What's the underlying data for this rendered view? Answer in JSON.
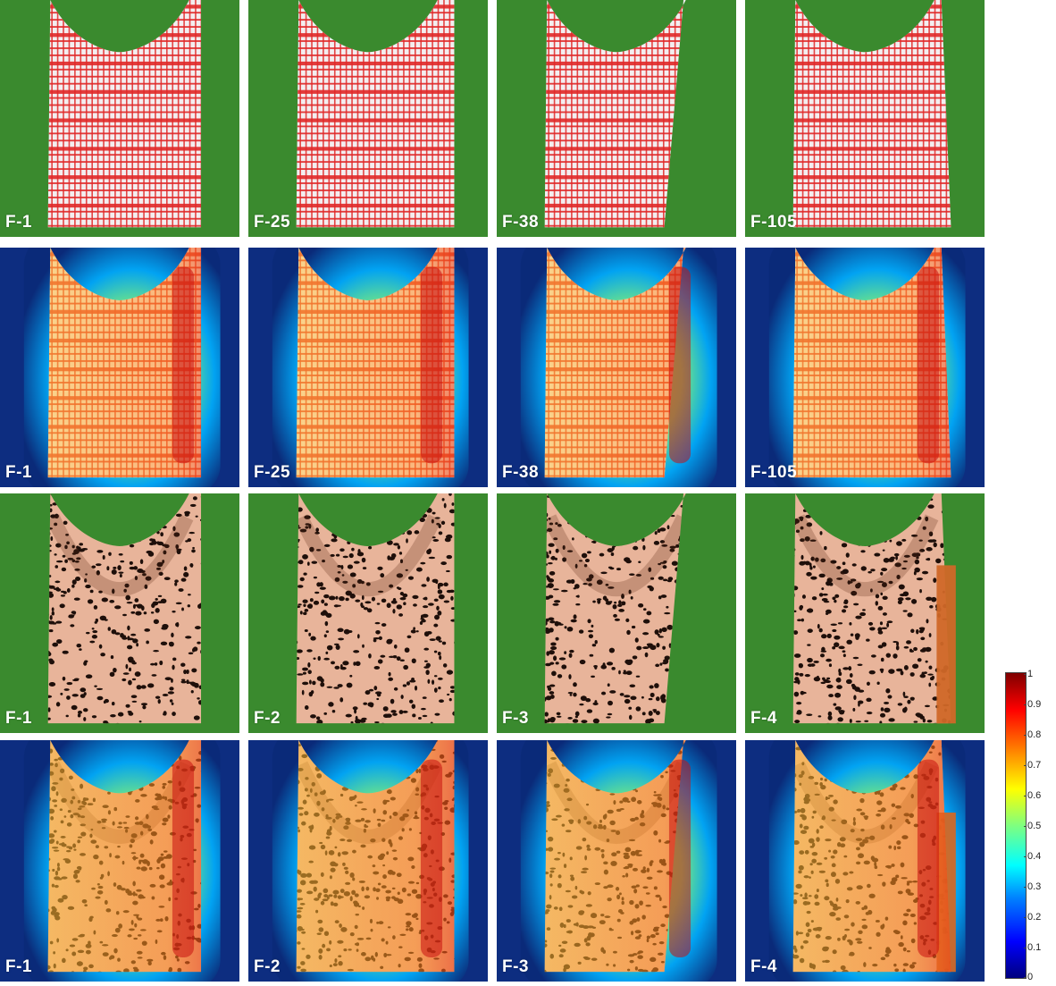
{
  "rows": [
    {
      "kind": "plaid-photo",
      "labels": [
        "F-1",
        "F-25",
        "F-38",
        "F-105"
      ]
    },
    {
      "kind": "plaid-heatmap",
      "labels": [
        "F-1",
        "F-25",
        "F-38",
        "F-105"
      ]
    },
    {
      "kind": "leopard-photo",
      "labels": [
        "F-1",
        "F-2",
        "F-3",
        "F-4"
      ]
    },
    {
      "kind": "leopard-heatmap",
      "labels": [
        "F-1",
        "F-2",
        "F-3",
        "F-4"
      ]
    }
  ],
  "colorbar": {
    "ticks": [
      "1",
      "0.9",
      "0.8",
      "0.7",
      "0.6",
      "0.5",
      "0.4",
      "0.3",
      "0.2",
      "0.1",
      "0"
    ],
    "min": 0,
    "max": 1,
    "colormap": "jet"
  },
  "colors": {
    "background": "#3a8a2e",
    "plaid": "#e02828",
    "leopard_base": "#e8b49a"
  }
}
